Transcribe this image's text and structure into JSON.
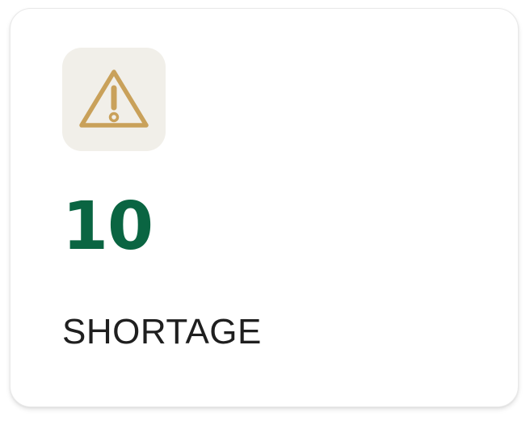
{
  "card": {
    "icon": "warning-triangle-icon",
    "count": "10",
    "label": "SHORTAGE"
  },
  "colors": {
    "accent_green": "#0a6542",
    "icon_gold": "#c9a15a",
    "icon_bg": "#f1efe9",
    "text_dark": "#1f1f1f"
  }
}
